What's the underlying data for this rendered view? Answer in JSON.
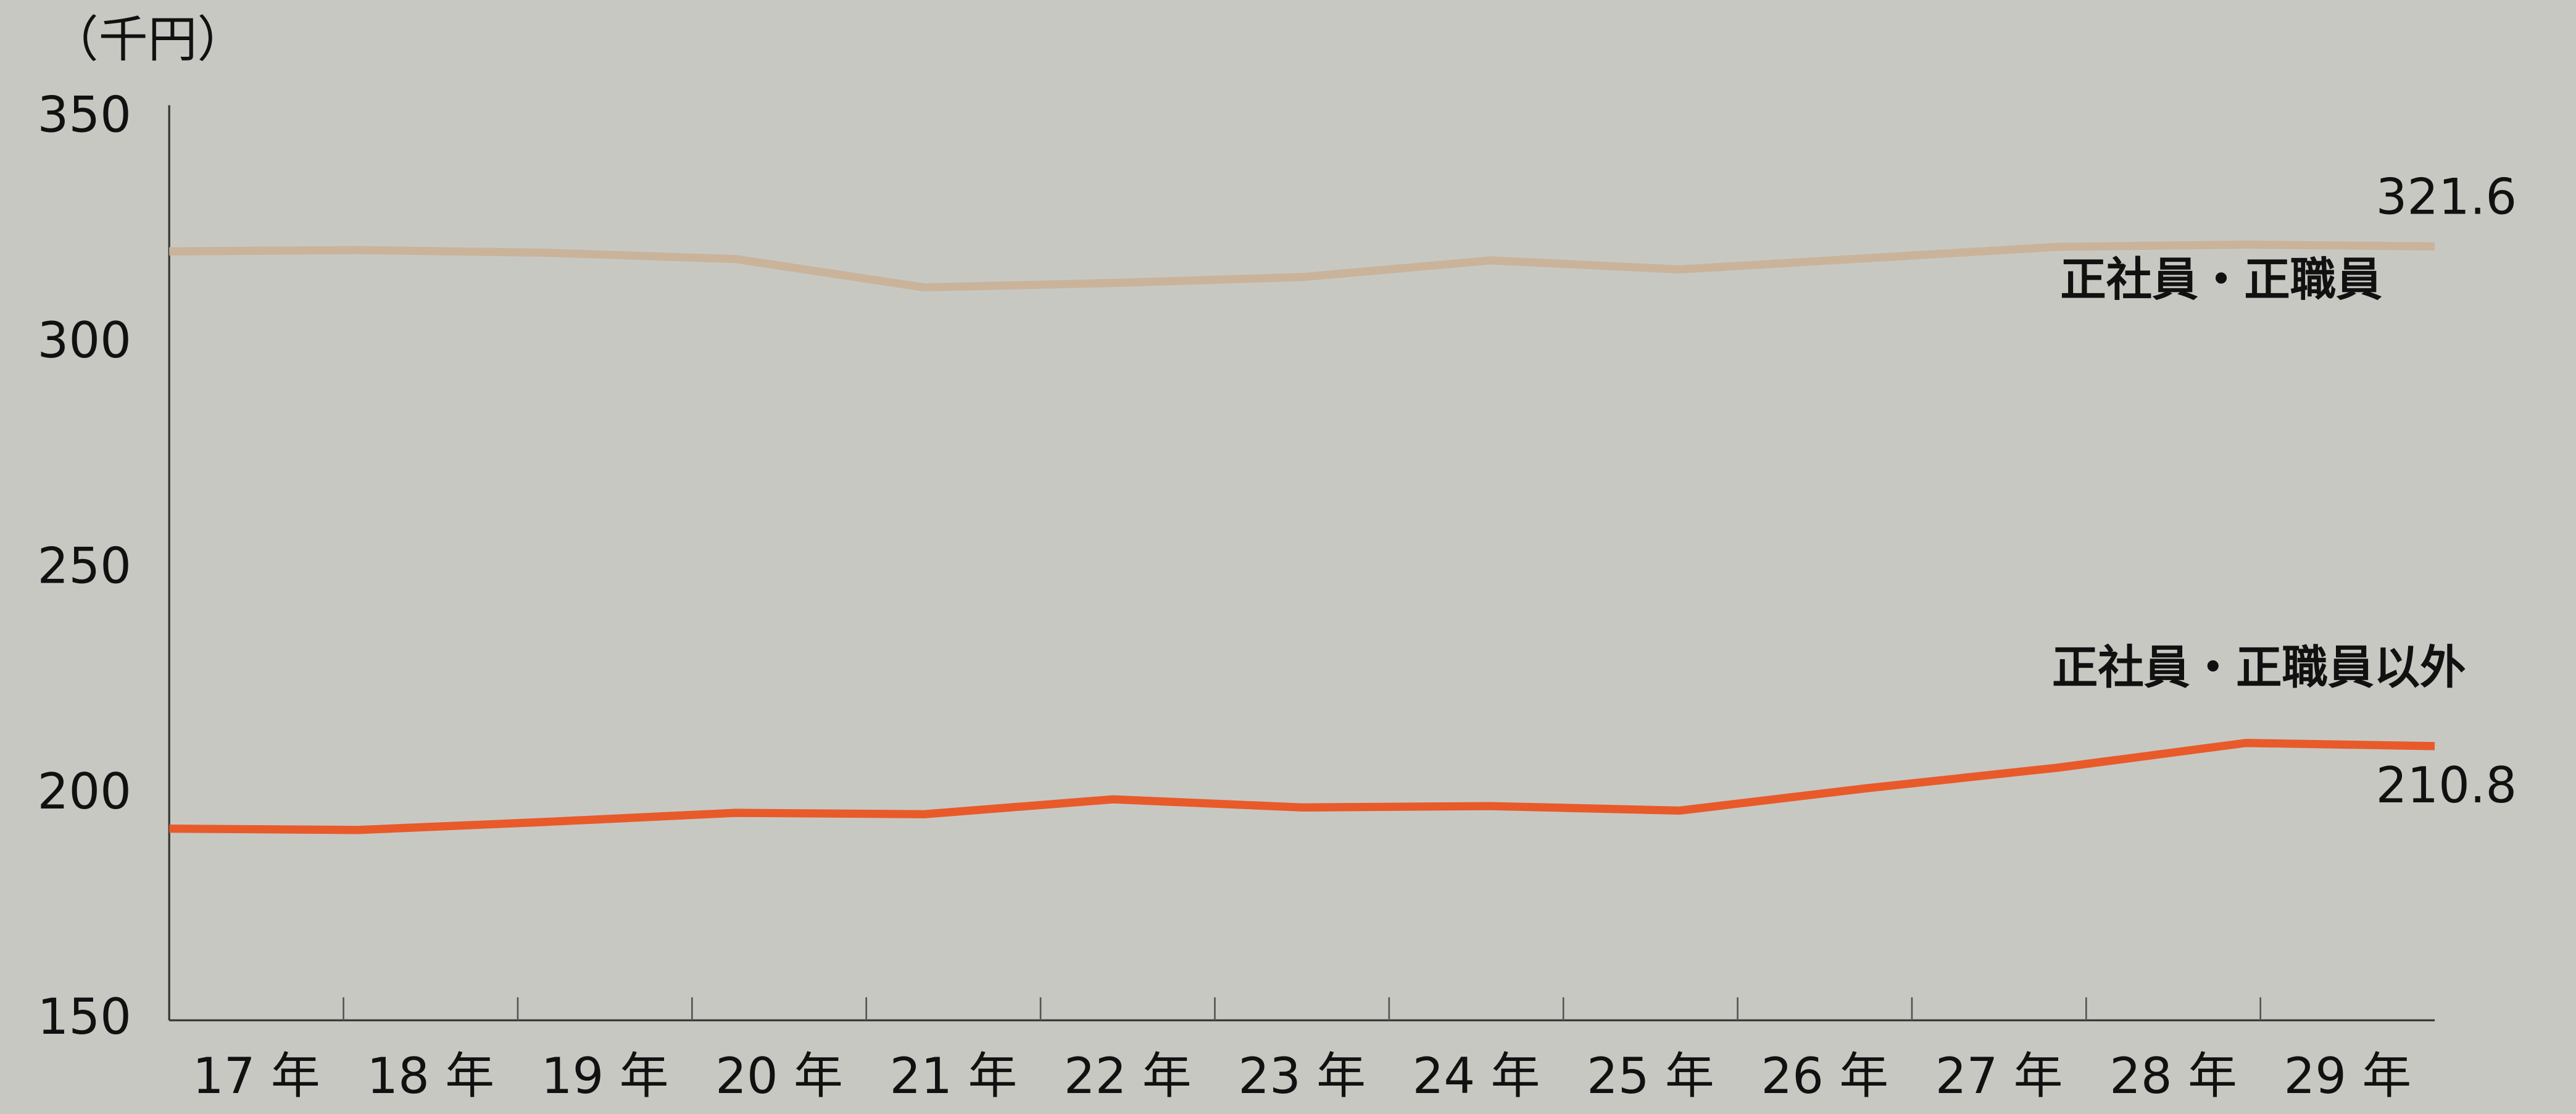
{
  "chart_data": {
    "type": "line",
    "unit_label": "（千円）",
    "categories": [
      "17 年",
      "18 年",
      "19 年",
      "20 年",
      "21 年",
      "22 年",
      "23 年",
      "24 年",
      "25 年",
      "26 年",
      "27 年",
      "28 年",
      "29 年"
    ],
    "series": [
      {
        "name": "正社員・正職員",
        "color": "#c9b49b",
        "values": [
          320.5,
          320.8,
          320.2,
          318.8,
          312.5,
          313.5,
          314.8,
          318.5,
          316.5,
          319.0,
          321.5,
          322.0,
          321.6
        ]
      },
      {
        "name": "正社員・正職員以外",
        "color": "#e85a2a",
        "values": [
          192.5,
          192.2,
          194.0,
          196.0,
          195.7,
          199.0,
          197.2,
          197.5,
          196.5,
          201.5,
          206.0,
          211.5,
          210.8
        ]
      }
    ],
    "ylim": [
      150,
      350
    ],
    "yticks": [
      150,
      200,
      250,
      300,
      350
    ],
    "grid": false
  }
}
